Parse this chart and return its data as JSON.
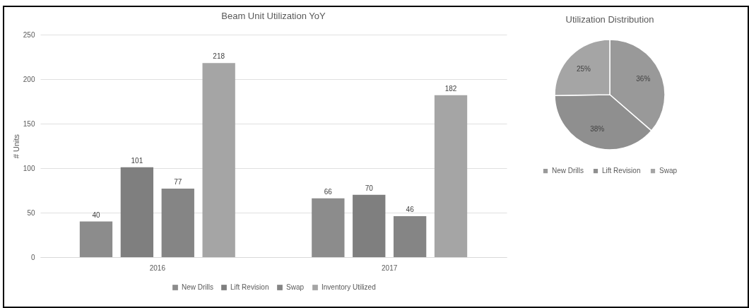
{
  "chart_data": [
    {
      "type": "bar",
      "title": "Beam Unit Utilization YoY",
      "ylabel": "# Units",
      "categories": [
        "2016",
        "2017"
      ],
      "series": [
        {
          "name": "New Drills",
          "color": "#8c8c8c",
          "values": [
            40,
            66
          ]
        },
        {
          "name": "Lift Revision",
          "color": "#7f7f7f",
          "values": [
            101,
            70
          ]
        },
        {
          "name": "Swap",
          "color": "#858585",
          "values": [
            77,
            46
          ]
        },
        {
          "name": "Inventory Utilized",
          "color": "#a5a5a5",
          "values": [
            218,
            182
          ]
        }
      ],
      "ylim": [
        0,
        250
      ],
      "yticks": [
        0,
        50,
        100,
        150,
        200,
        250
      ],
      "grid": "y",
      "legend": "bottom",
      "data_labels": true
    },
    {
      "type": "pie",
      "title": "Utilization Distribution",
      "categories": [
        "New Drills",
        "Lift Revision",
        "Swap"
      ],
      "values": [
        36,
        38,
        25
      ],
      "colors": [
        "#999999",
        "#8f8f8f",
        "#a5a5a5"
      ],
      "value_labels": [
        "36%",
        "38%",
        "25%"
      ],
      "legend": "bottom"
    }
  ]
}
